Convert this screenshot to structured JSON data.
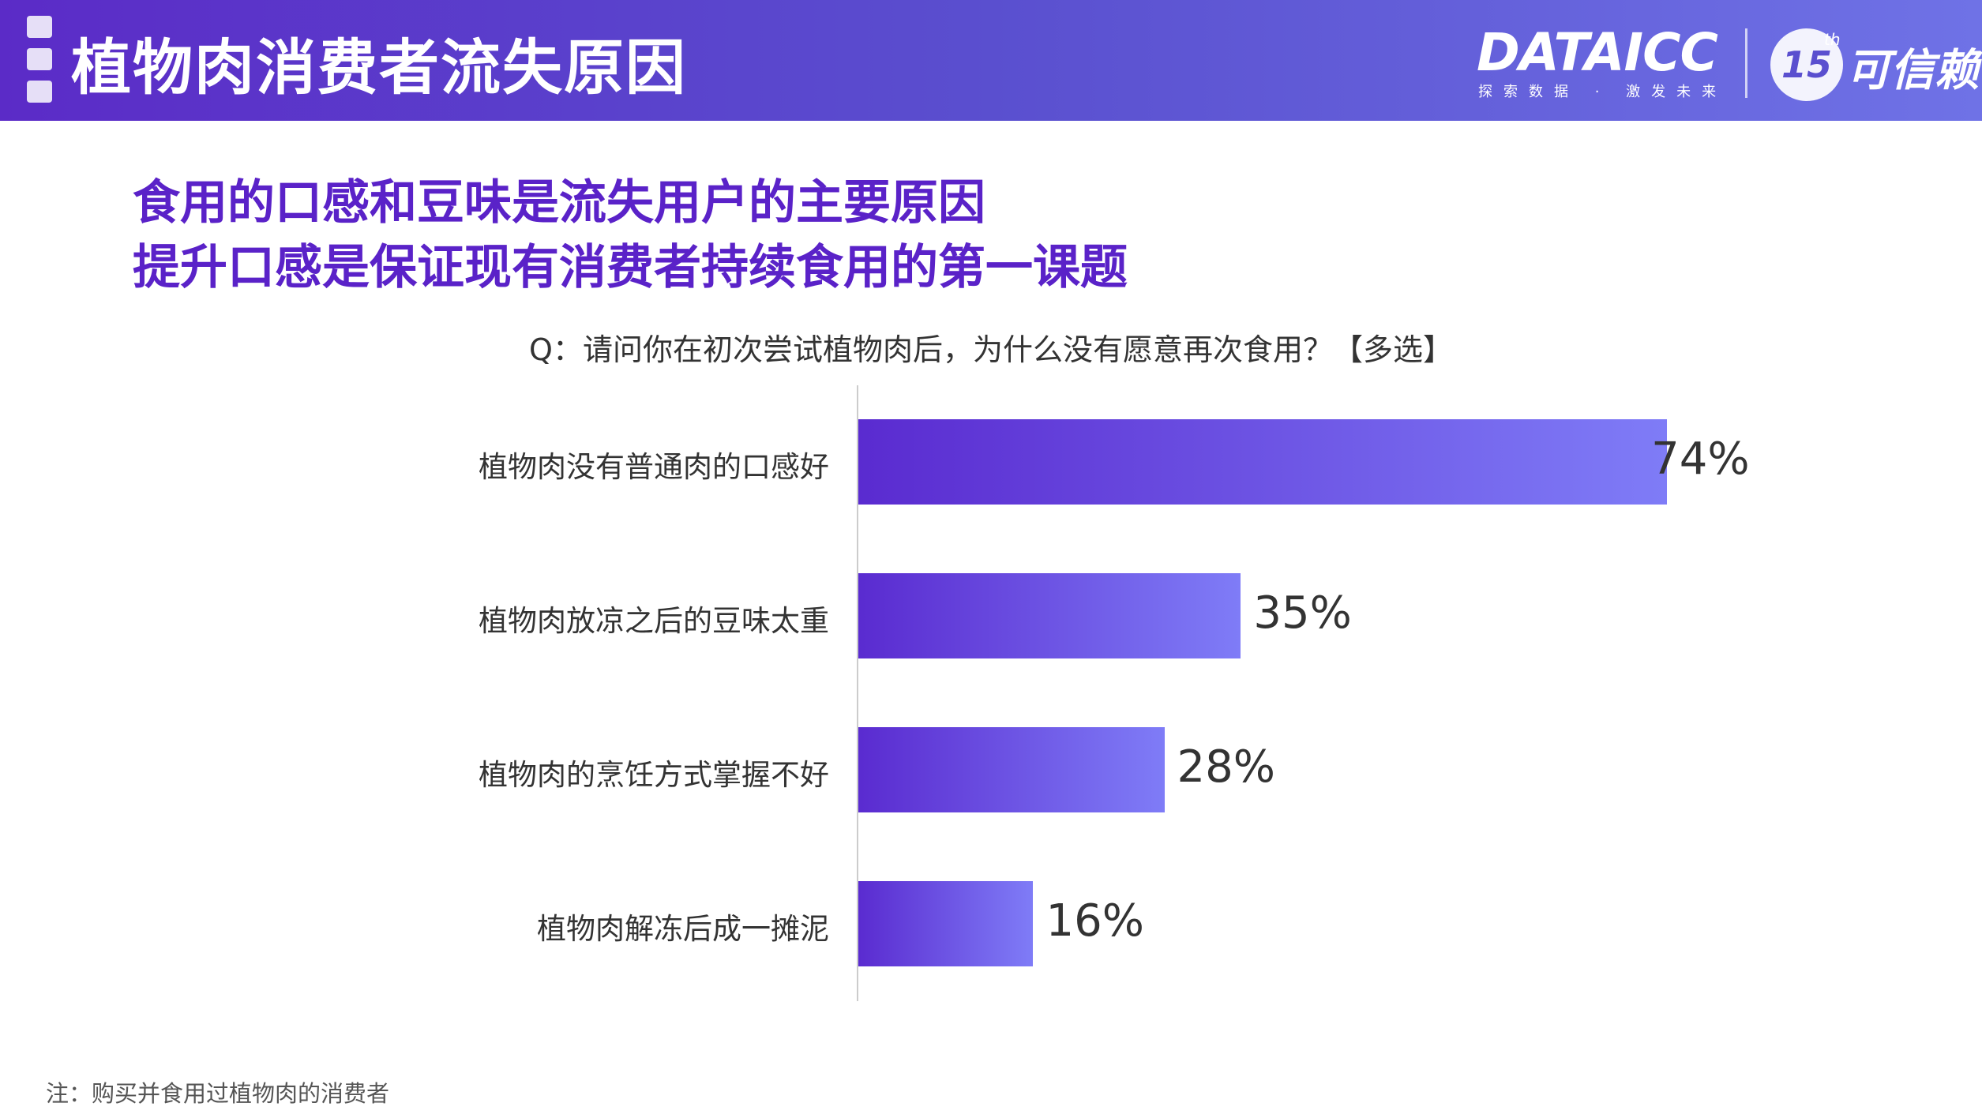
{
  "header": {
    "title": "植物肉消费者流失原因",
    "logo": "DATAICC",
    "logo_tagline": "探索数据 · 激发未来",
    "badge_number": "15",
    "badge_sup": "th",
    "badge_text": "可信赖"
  },
  "headline": {
    "line1": "食用的口感和豆味是流失用户的主要原因",
    "line2": "提升口感是保证现有消费者持续食用的第一课题"
  },
  "question": "Q：请问你在初次尝试植物肉后，为什么没有愿意再次食用？【多选】",
  "note": "注：购买并食用过植物肉的消费者",
  "colors": {
    "header_start": "#5b2bc7",
    "header_end": "#6f72e6",
    "headline": "#5a22c8",
    "bar_start": "#5a2bd0",
    "bar_end": "#7f7cf7"
  },
  "chart_data": {
    "type": "bar",
    "orientation": "horizontal",
    "title": "Q：请问你在初次尝试植物肉后，为什么没有愿意再次食用？【多选】",
    "categories": [
      "植物肉没有普通肉的口感好",
      "植物肉放凉之后的豆味太重",
      "植物肉的烹饪方式掌握不好",
      "植物肉解冻后成一摊泥"
    ],
    "values": [
      74,
      35,
      28,
      16
    ],
    "value_labels": [
      "74%",
      "35%",
      "28%",
      "16%"
    ],
    "unit": "%",
    "xlim": [
      0,
      100
    ],
    "grid": false,
    "legend": "none"
  }
}
